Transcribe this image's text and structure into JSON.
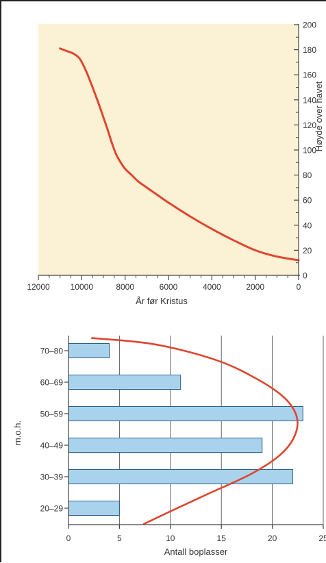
{
  "colors": {
    "curve": "#e0452f",
    "panel_bg": "#fbf1d4",
    "bar_fill": "#a9d2ec",
    "bar_stroke": "#2c5f8a",
    "axis": "#444444",
    "grid": "#555555"
  },
  "chart_data": [
    {
      "type": "line",
      "xlabel": "År før Kristus",
      "ylabel": "Høyde over havet",
      "x_reversed": true,
      "xlim": [
        12000,
        0
      ],
      "ylim": [
        0,
        200
      ],
      "x_ticks": [
        12000,
        10000,
        8000,
        6000,
        4000,
        2000,
        0
      ],
      "x_tick_labels": [
        "12000",
        "10000",
        "8000",
        "6000",
        "4000",
        "2000",
        "0"
      ],
      "y_ticks": [
        0,
        20,
        40,
        60,
        80,
        100,
        120,
        140,
        160,
        180,
        200
      ],
      "y_tick_labels": [
        "0",
        "20",
        "40",
        "60",
        "80",
        "100",
        "120",
        "140",
        "160",
        "180",
        "200"
      ],
      "y_axis_side": "right",
      "grid": false,
      "series": [
        {
          "x": [
            11000,
            10700,
            10400,
            10100,
            9800,
            9500,
            9200,
            9000,
            8800,
            8600,
            8400,
            8200,
            8000,
            7700,
            7400,
            7000,
            6500,
            6000,
            5000,
            4000,
            3000,
            2000,
            1000,
            0
          ],
          "y": [
            181,
            179,
            177,
            173,
            163,
            150,
            136,
            126,
            116,
            105,
            96,
            90,
            85,
            80,
            75,
            70,
            64,
            58,
            47,
            37,
            28,
            20,
            15,
            12
          ]
        }
      ]
    },
    {
      "type": "bar",
      "orientation": "horizontal",
      "xlabel": "Antall boplasser",
      "ylabel": "m.o.h.",
      "categories": [
        "70–80",
        "60–69",
        "50–59",
        "40–49",
        "30–39",
        "20–29"
      ],
      "values": [
        4,
        11,
        23,
        19,
        22,
        5
      ],
      "xlim": [
        0,
        25
      ],
      "x_ticks": [
        0,
        5,
        10,
        15,
        20,
        25
      ],
      "x_tick_labels": [
        "0",
        "5",
        "10",
        "15",
        "20",
        "25"
      ],
      "grid": true,
      "trend_curve": {
        "x": [
          2.3,
          8.5,
          14.5,
          18.5,
          21.2,
          22.4,
          22.2,
          20.8,
          18,
          14,
          10,
          7.4
        ],
        "y": [
          79,
          77,
          72,
          66,
          60,
          54,
          48,
          42,
          36,
          30,
          24,
          20
        ]
      }
    }
  ]
}
